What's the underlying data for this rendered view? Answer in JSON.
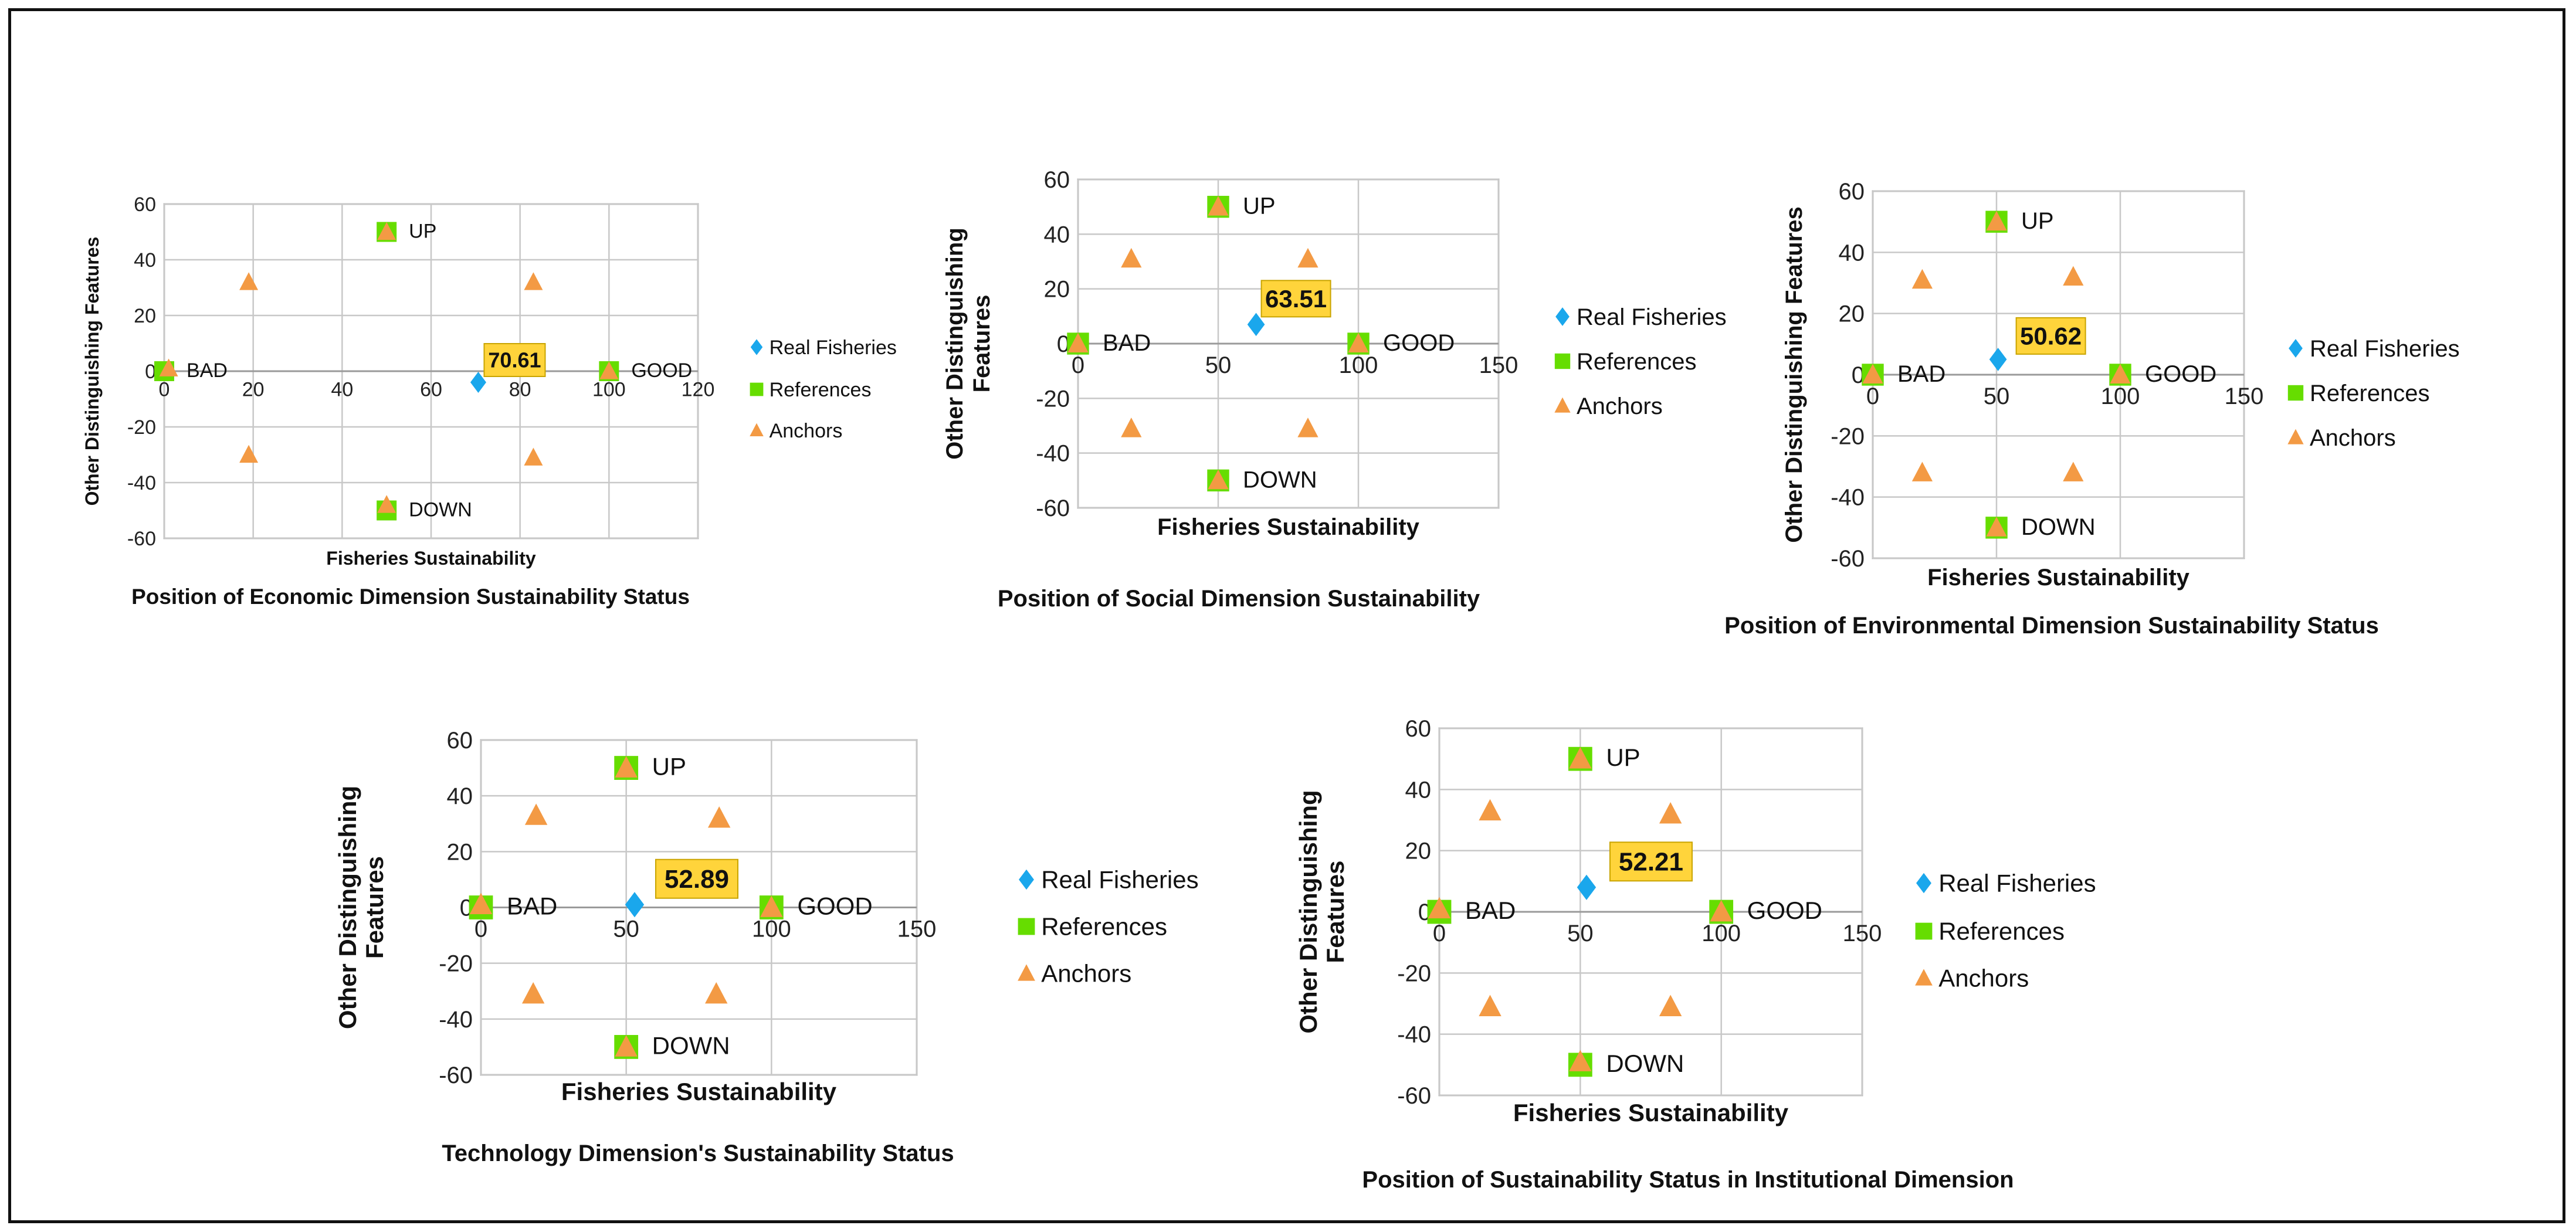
{
  "chart_data": [
    {
      "type": "scatter",
      "title": "Position of Economic Dimension Sustainability Status",
      "xlabel": "Fisheries  Sustainability",
      "ylabel": [
        "Other Distinguishing  Features"
      ],
      "xlim": [
        0,
        120
      ],
      "xticks": [
        0,
        20,
        40,
        60,
        80,
        100,
        120
      ],
      "ylim": [
        -60,
        60
      ],
      "yticks": [
        -60,
        -40,
        -20,
        0,
        20,
        40,
        60
      ],
      "legend_position": "right",
      "series": [
        {
          "name": "Real Fisheries",
          "color": "#1aa7ec",
          "marker": "diamond",
          "points": [
            [
              70.61,
              -4
            ]
          ]
        },
        {
          "name": "References",
          "color": "#66dd00",
          "marker": "square",
          "points": [
            [
              0,
              0
            ],
            [
              100,
              0
            ],
            [
              50,
              50
            ],
            [
              50,
              -50
            ]
          ]
        },
        {
          "name": "Anchors",
          "color": "#f39a44",
          "marker": "triangle",
          "points": [
            [
              1,
              1
            ],
            [
              19,
              32
            ],
            [
              19,
              -30
            ],
            [
              50,
              50
            ],
            [
              50,
              -48
            ],
            [
              83,
              32
            ],
            [
              83,
              -31
            ],
            [
              100,
              0
            ]
          ]
        }
      ],
      "annotations": [
        {
          "text": "BAD",
          "x": 0,
          "y": 0
        },
        {
          "text": "GOOD",
          "x": 100,
          "y": 0
        },
        {
          "text": "UP",
          "x": 50,
          "y": 50
        },
        {
          "text": "DOWN",
          "x": 50,
          "y": -50
        }
      ],
      "value_label": "70.61"
    },
    {
      "type": "scatter",
      "title": "Position of Social Dimension Sustainability",
      "xlabel": "Fisheries Sustainability",
      "ylabel": [
        "Other Distinguishing",
        "Features"
      ],
      "xlim": [
        0,
        150
      ],
      "xticks": [
        0,
        50,
        100,
        150
      ],
      "ylim": [
        -60,
        60
      ],
      "yticks": [
        -60,
        -40,
        -20,
        0,
        20,
        40,
        60
      ],
      "legend_position": "right",
      "series": [
        {
          "name": "Real Fisheries",
          "color": "#1aa7ec",
          "marker": "diamond",
          "points": [
            [
              63.51,
              7
            ]
          ]
        },
        {
          "name": "References",
          "color": "#66dd00",
          "marker": "square",
          "points": [
            [
              0,
              0
            ],
            [
              100,
              0
            ],
            [
              50,
              50
            ],
            [
              50,
              -50
            ]
          ]
        },
        {
          "name": "Anchors",
          "color": "#f39a44",
          "marker": "triangle",
          "points": [
            [
              0,
              0
            ],
            [
              19,
              31
            ],
            [
              19,
              -31
            ],
            [
              50,
              50
            ],
            [
              50,
              -50
            ],
            [
              82,
              31
            ],
            [
              82,
              -31
            ],
            [
              100,
              0
            ]
          ]
        }
      ],
      "annotations": [
        {
          "text": "BAD",
          "x": 0,
          "y": 0
        },
        {
          "text": "GOOD",
          "x": 100,
          "y": 0
        },
        {
          "text": "UP",
          "x": 50,
          "y": 50
        },
        {
          "text": "DOWN",
          "x": 50,
          "y": -50
        }
      ],
      "value_label": "63.51"
    },
    {
      "type": "scatter",
      "title": "Position of Environmental Dimension Sustainability Status",
      "xlabel": "Fisheries Sustainability",
      "ylabel": [
        "Other Distinguishing Features"
      ],
      "xlim": [
        0,
        150
      ],
      "xticks": [
        0,
        50,
        100,
        150
      ],
      "ylim": [
        -60,
        60
      ],
      "yticks": [
        -60,
        -40,
        -20,
        0,
        20,
        40,
        60
      ],
      "legend_position": "right",
      "series": [
        {
          "name": "Real Fisheries",
          "color": "#1aa7ec",
          "marker": "diamond",
          "points": [
            [
              50.62,
              5
            ]
          ]
        },
        {
          "name": "References",
          "color": "#66dd00",
          "marker": "square",
          "points": [
            [
              0,
              0
            ],
            [
              100,
              0
            ],
            [
              50,
              50
            ],
            [
              50,
              -50
            ]
          ]
        },
        {
          "name": "Anchors",
          "color": "#f39a44",
          "marker": "triangle",
          "points": [
            [
              0,
              0
            ],
            [
              20,
              31
            ],
            [
              20,
              -32
            ],
            [
              50,
              50
            ],
            [
              50,
              -50
            ],
            [
              81,
              32
            ],
            [
              81,
              -32
            ],
            [
              100,
              0
            ]
          ]
        }
      ],
      "annotations": [
        {
          "text": "BAD",
          "x": 0,
          "y": 0
        },
        {
          "text": "GOOD",
          "x": 100,
          "y": 0
        },
        {
          "text": "UP",
          "x": 50,
          "y": 50
        },
        {
          "text": "DOWN",
          "x": 50,
          "y": -50
        }
      ],
      "value_label": "50.62"
    },
    {
      "type": "scatter",
      "title": "Technology Dimension's Sustainability Status",
      "xlabel": "Fisheries Sustainability",
      "ylabel": [
        "Other Distinguishing",
        "Features"
      ],
      "xlim": [
        0,
        150
      ],
      "xticks": [
        0,
        50,
        100,
        150
      ],
      "ylim": [
        -60,
        60
      ],
      "yticks": [
        -60,
        -40,
        -20,
        0,
        20,
        40,
        60
      ],
      "legend_position": "right",
      "series": [
        {
          "name": "Real Fisheries",
          "color": "#1aa7ec",
          "marker": "diamond",
          "points": [
            [
              52.89,
              1
            ]
          ]
        },
        {
          "name": "References",
          "color": "#66dd00",
          "marker": "square",
          "points": [
            [
              0,
              0
            ],
            [
              100,
              0
            ],
            [
              50,
              50
            ],
            [
              50,
              -50
            ]
          ]
        },
        {
          "name": "Anchors",
          "color": "#f39a44",
          "marker": "triangle",
          "points": [
            [
              0,
              1
            ],
            [
              19,
              33
            ],
            [
              18,
              -31
            ],
            [
              50,
              50
            ],
            [
              50,
              -50
            ],
            [
              82,
              32
            ],
            [
              81,
              -31
            ],
            [
              100,
              0
            ]
          ]
        }
      ],
      "annotations": [
        {
          "text": "BAD",
          "x": 0,
          "y": 0
        },
        {
          "text": "GOOD",
          "x": 100,
          "y": 0
        },
        {
          "text": "UP",
          "x": 50,
          "y": 50
        },
        {
          "text": "DOWN",
          "x": 50,
          "y": -50
        }
      ],
      "value_label": "52.89"
    },
    {
      "type": "scatter",
      "title": "Position of Sustainability Status in Institutional Dimension",
      "xlabel": "Fisheries Sustainability",
      "ylabel": [
        "Other Distinguishing",
        "Features"
      ],
      "xlim": [
        0,
        150
      ],
      "xticks": [
        0,
        50,
        100,
        150
      ],
      "ylim": [
        -60,
        60
      ],
      "yticks": [
        -60,
        -40,
        -20,
        0,
        20,
        40,
        60
      ],
      "legend_position": "right",
      "series": [
        {
          "name": "Real Fisheries",
          "color": "#1aa7ec",
          "marker": "diamond",
          "points": [
            [
              52.21,
              8
            ]
          ]
        },
        {
          "name": "References",
          "color": "#66dd00",
          "marker": "square",
          "points": [
            [
              0,
              0
            ],
            [
              100,
              0
            ],
            [
              50,
              50
            ],
            [
              50,
              -50
            ]
          ]
        },
        {
          "name": "Anchors",
          "color": "#f39a44",
          "marker": "triangle",
          "points": [
            [
              0,
              1
            ],
            [
              18,
              33
            ],
            [
              18,
              -31
            ],
            [
              50,
              50
            ],
            [
              50,
              -49
            ],
            [
              82,
              32
            ],
            [
              82,
              -31
            ],
            [
              100,
              0
            ]
          ]
        }
      ],
      "annotations": [
        {
          "text": "BAD",
          "x": 0,
          "y": 0
        },
        {
          "text": "GOOD",
          "x": 100,
          "y": 0
        },
        {
          "text": "UP",
          "x": 50,
          "y": 50
        },
        {
          "text": "DOWN",
          "x": 50,
          "y": -50
        }
      ],
      "value_label": "52.21"
    }
  ]
}
